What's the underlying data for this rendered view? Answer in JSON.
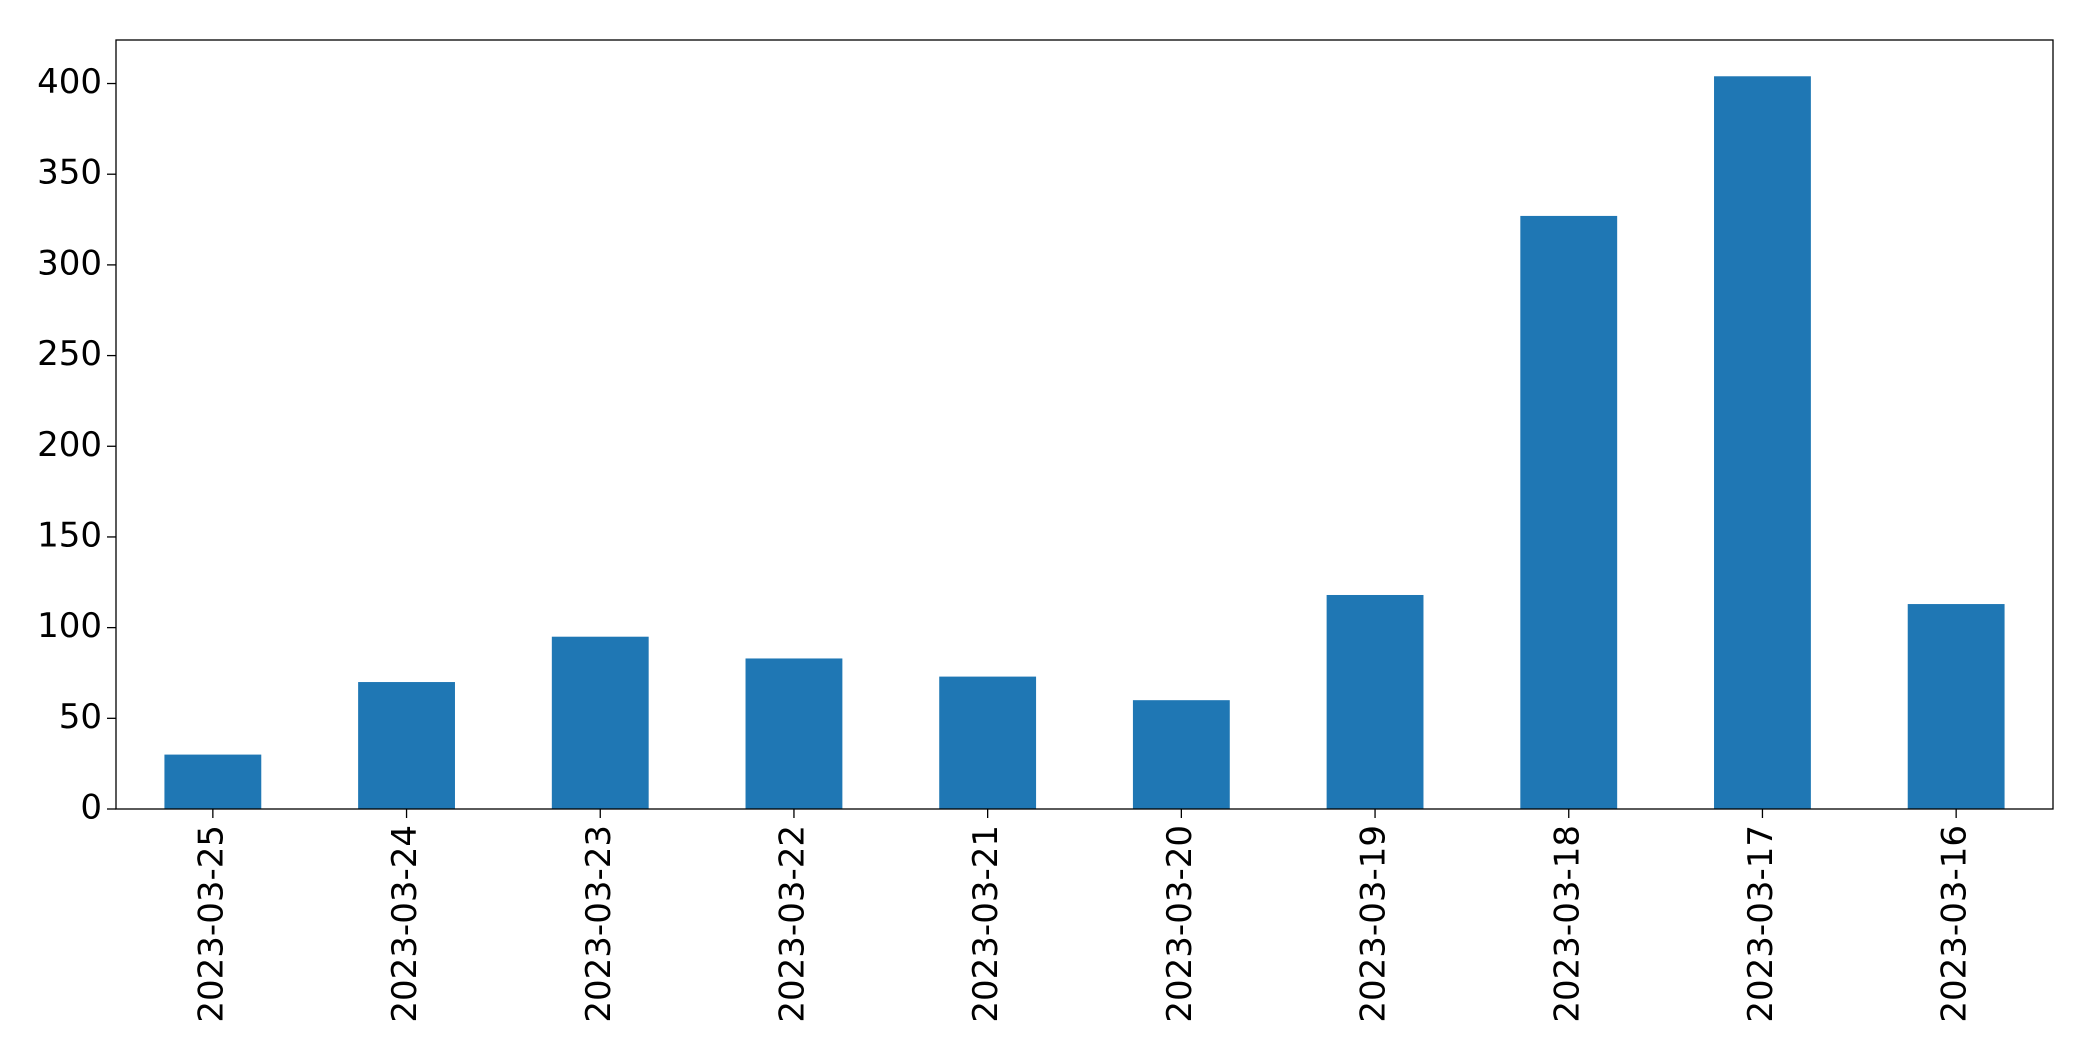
{
  "chart_data": {
    "type": "bar",
    "categories": [
      "2023-03-25",
      "2023-03-24",
      "2023-03-23",
      "2023-03-22",
      "2023-03-21",
      "2023-03-20",
      "2023-03-19",
      "2023-03-18",
      "2023-03-17",
      "2023-03-16"
    ],
    "values": [
      30,
      70,
      95,
      83,
      73,
      60,
      118,
      327,
      404,
      113
    ],
    "color": "#1f77b4",
    "ylim": [
      0,
      424
    ],
    "yticks": [
      0,
      50,
      100,
      150,
      200,
      250,
      300,
      350,
      400
    ],
    "grid": false
  }
}
